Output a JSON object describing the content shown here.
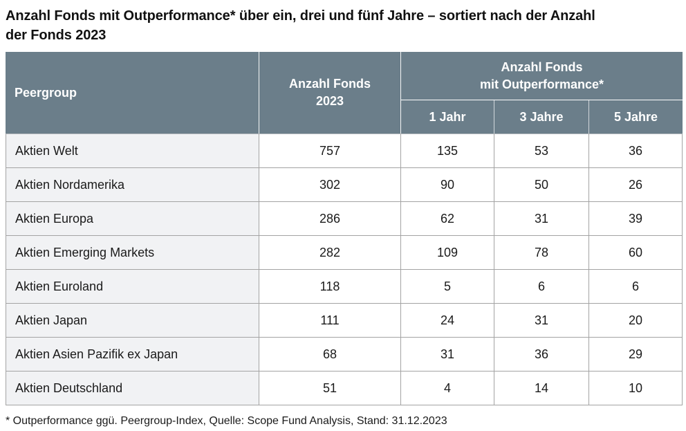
{
  "page": {
    "title_lines": [
      "Anzahl Fonds mit Outperformance* über ein, drei und fünf Jahre – sortiert nach der Anzahl",
      "der Fonds 2023"
    ]
  },
  "table": {
    "header": {
      "peergroup": "Peergroup",
      "anzahl_fonds_line1": "Anzahl Fonds",
      "anzahl_fonds_line2": "2023",
      "outperformance_line1": "Anzahl Fonds",
      "outperformance_line2": "mit Outperformance*",
      "sub_columns": [
        "1 Jahr",
        "3 Jahre",
        "5 Jahre"
      ]
    }
  },
  "chart_data": {
    "type": "table",
    "title": "Anzahl Fonds mit Outperformance* über ein, drei und fünf Jahre – sortiert nach der Anzahl der Fonds 2023",
    "columns": [
      "Peergroup",
      "Anzahl Fonds 2023",
      "Anzahl Fonds mit Outperformance* – 1 Jahr",
      "Anzahl Fonds mit Outperformance* – 3 Jahre",
      "Anzahl Fonds mit Outperformance* – 5 Jahre"
    ],
    "rows": [
      [
        "Aktien Welt",
        757,
        135,
        53,
        36
      ],
      [
        "Aktien Nordamerika",
        302,
        90,
        50,
        26
      ],
      [
        "Aktien Europa",
        286,
        62,
        31,
        39
      ],
      [
        "Aktien Emerging Markets",
        282,
        109,
        78,
        60
      ],
      [
        "Aktien Euroland",
        118,
        5,
        6,
        6
      ],
      [
        "Aktien Japan",
        111,
        24,
        31,
        20
      ],
      [
        "Aktien Asien Pazifik ex Japan",
        68,
        31,
        36,
        29
      ],
      [
        "Aktien Deutschland",
        51,
        4,
        14,
        10
      ]
    ],
    "footnote": "* Outperformance ggü. Peergroup-Index, Quelle: Scope Fund Analysis, Stand: 31.12.2023"
  },
  "colors": {
    "header_bg": "#6b7e8a",
    "header_divider": "#ffffff",
    "body_border": "#a3a3a3",
    "label_cell_bg": "#f1f2f4"
  }
}
